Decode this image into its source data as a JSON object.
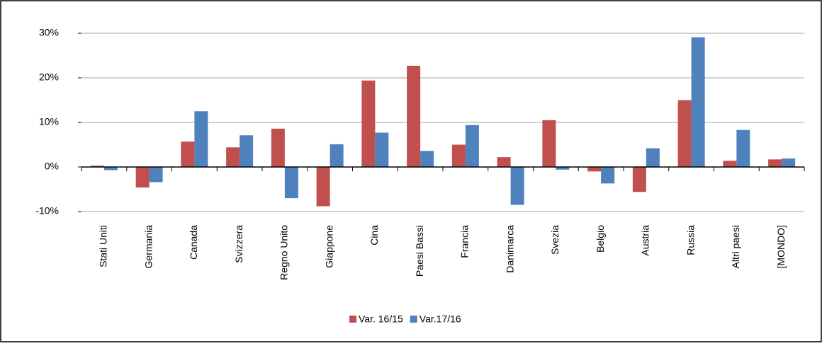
{
  "chart_data": {
    "type": "bar",
    "categories": [
      "Stati Uniti",
      "Germania",
      "Canada",
      "Svizzera",
      "Regno Unito",
      "Giappone",
      "Cina",
      "Paesi Bassi",
      "Francia",
      "Danimarca",
      "Svezia",
      "Belgio",
      "Austria",
      "Russia",
      "Altri paesi",
      "[MONDO]"
    ],
    "series": [
      {
        "name": "Var. 16/15",
        "color": "#c0504d",
        "values": [
          0.3,
          -4.6,
          5.7,
          4.4,
          8.6,
          -8.8,
          19.4,
          22.7,
          5.0,
          2.2,
          10.5,
          -1.0,
          -5.6,
          15.0,
          1.4,
          1.7
        ]
      },
      {
        "name": "Var.17/16",
        "color": "#4f81bd",
        "values": [
          -0.7,
          -3.4,
          12.5,
          7.1,
          -7.0,
          5.1,
          7.7,
          3.6,
          9.4,
          -8.5,
          -0.6,
          -3.7,
          4.2,
          29.1,
          8.3,
          1.9
        ]
      }
    ],
    "ylim": [
      -10,
      30
    ],
    "yticks": [
      {
        "value": -10,
        "label": "-10%"
      },
      {
        "value": 0,
        "label": "0%"
      },
      {
        "value": 10,
        "label": "10%"
      },
      {
        "value": 20,
        "label": "20%"
      },
      {
        "value": 30,
        "label": "30%"
      }
    ],
    "grid": true,
    "legend": "bottom"
  }
}
